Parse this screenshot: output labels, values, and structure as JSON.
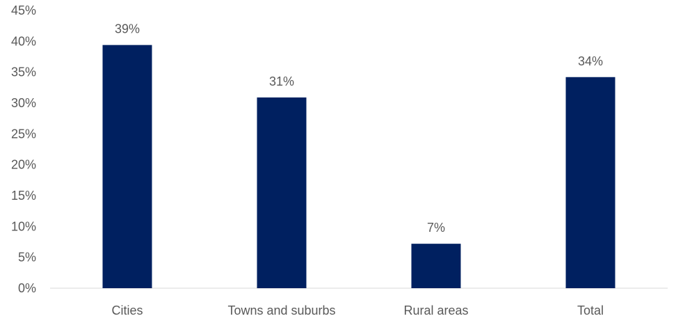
{
  "chart_data": {
    "type": "bar",
    "categories": [
      "Cities",
      "Towns and suburbs",
      "Rural areas",
      "Total"
    ],
    "values": [
      39.4,
      30.9,
      7.2,
      34.2
    ],
    "data_labels": [
      "39%",
      "31%",
      "7%",
      "34%"
    ],
    "title": "",
    "xlabel": "",
    "ylabel": "",
    "ylim": [
      0,
      45
    ],
    "yticks": [
      0,
      5,
      10,
      15,
      20,
      25,
      30,
      35,
      40,
      45
    ],
    "ytick_labels": [
      "0%",
      "5%",
      "10%",
      "15%",
      "20%",
      "25%",
      "30%",
      "35%",
      "40%",
      "45%"
    ],
    "grid": false,
    "legend": "none",
    "bar_color": "#002060"
  }
}
